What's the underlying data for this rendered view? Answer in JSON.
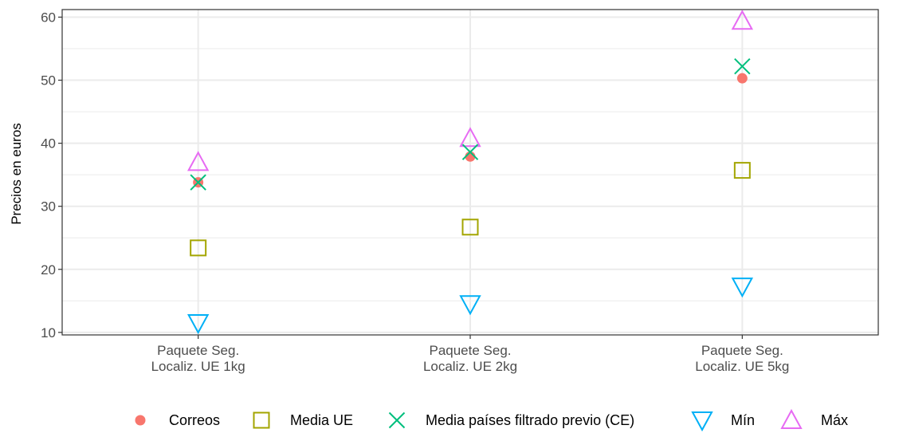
{
  "chart_data": {
    "type": "scatter",
    "categories": [
      "Paquete Seg.\nLocaliz. UE 1kg",
      "Paquete Seg.\nLocaliz. UE 2kg",
      "Paquete Seg.\nLocaliz. UE 5kg"
    ],
    "series": [
      {
        "name": "Correos",
        "marker": "circle",
        "color": "#F8766D",
        "values": [
          33.8,
          37.9,
          50.3
        ]
      },
      {
        "name": "Media UE",
        "marker": "square",
        "color": "#A3A500",
        "values": [
          23.4,
          26.7,
          35.7
        ]
      },
      {
        "name": "Media países filtrado previo (CE)",
        "marker": "cross",
        "color": "#00BF7D",
        "values": [
          33.8,
          38.6,
          52.2
        ]
      },
      {
        "name": "Mín",
        "marker": "triangle-down",
        "color": "#00B0F6",
        "values": [
          11.5,
          14.5,
          17.3
        ]
      },
      {
        "name": "Máx",
        "marker": "triangle-up",
        "color": "#E76BF3",
        "values": [
          37.0,
          40.8,
          59.4
        ]
      }
    ],
    "xlabel": "",
    "ylabel": "Precios en euros",
    "ylim": [
      9.6,
      61.2
    ],
    "yticks": [
      10,
      20,
      30,
      40,
      50,
      60
    ],
    "grid": true,
    "legend_position": "bottom"
  }
}
